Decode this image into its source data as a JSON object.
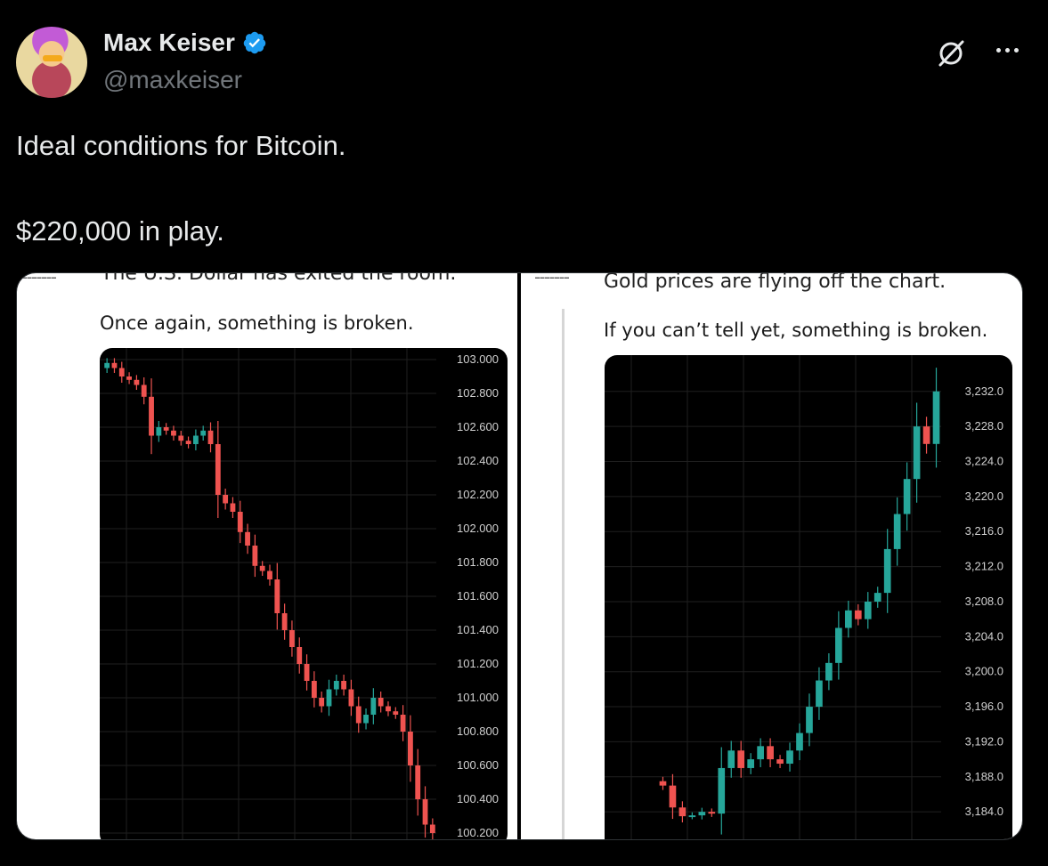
{
  "author": {
    "display_name": "Max Keiser",
    "handle": "@maxkeiser",
    "verified": true,
    "avatar_icon": "profile-avatar",
    "accent_color": "#1d9bf0"
  },
  "tweet": {
    "text": "Ideal conditions for Bitcoin.\n\n$220,000 in play."
  },
  "actions": {
    "grok_icon": "grok-icon",
    "more_icon": "more-options-icon"
  },
  "media": {
    "left": {
      "headline_cut": "The U.S. Dollar has exited the room.",
      "subtitle": "Once again, something is broken.",
      "chart_data": {
        "type": "candlestick",
        "y_ticks": [
          "103.000",
          "102.800",
          "102.600",
          "102.400",
          "102.200",
          "102.000",
          "101.800",
          "101.600",
          "101.400",
          "101.200",
          "101.000",
          "100.800",
          "100.600",
          "100.400",
          "100.200"
        ],
        "ylim": [
          100.2,
          103.0
        ],
        "trend": "down",
        "colors": {
          "up": "#26a69a",
          "down": "#ef5350"
        },
        "closes": [
          102.98,
          102.95,
          102.9,
          102.88,
          102.85,
          102.78,
          102.55,
          102.6,
          102.58,
          102.55,
          102.52,
          102.5,
          102.55,
          102.58,
          102.5,
          102.2,
          102.15,
          102.1,
          101.98,
          101.9,
          101.78,
          101.75,
          101.7,
          101.5,
          101.4,
          101.3,
          101.2,
          101.1,
          101.0,
          100.95,
          101.05,
          101.1,
          101.05,
          100.95,
          100.85,
          100.9,
          101.0,
          100.95,
          100.92,
          100.9,
          100.8,
          100.6,
          100.4,
          100.25,
          100.2
        ]
      }
    },
    "right": {
      "headline_cut": "Gold prices are flying off the chart.",
      "subtitle": "If you can’t tell yet, something is broken.",
      "chart_data": {
        "type": "candlestick",
        "y_ticks": [
          "3,232.0",
          "3,228.0",
          "3,224.0",
          "3,220.0",
          "3,216.0",
          "3,212.0",
          "3,208.0",
          "3,204.0",
          "3,200.0",
          "3,196.0",
          "3,192.0",
          "3,188.0",
          "3,184.0"
        ],
        "ylim": [
          3183.0,
          3233.5
        ],
        "trend": "up",
        "colors": {
          "up": "#26a69a",
          "down": "#ef5350"
        },
        "closes": [
          3187,
          3184.5,
          3183.5,
          3183.6,
          3184,
          3183.8,
          3189,
          3191,
          3189,
          3190,
          3191.5,
          3190,
          3189.5,
          3191,
          3193,
          3196,
          3199,
          3201,
          3205,
          3207,
          3206,
          3208,
          3209,
          3214,
          3218,
          3222,
          3228,
          3226,
          3232
        ]
      }
    }
  }
}
